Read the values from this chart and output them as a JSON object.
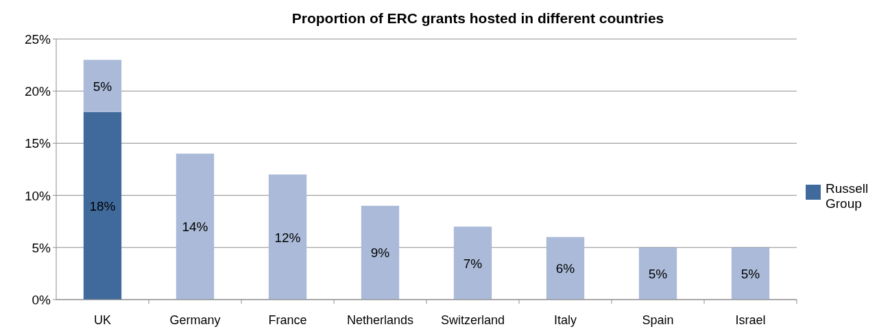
{
  "chart_data": {
    "type": "bar",
    "title": "Proportion of ERC grants hosted in different countries",
    "categories": [
      "UK",
      "Germany",
      "France",
      "Netherlands",
      "Switzerland",
      "Italy",
      "Spain",
      "Israel"
    ],
    "stacked": true,
    "series": [
      {
        "name": "Russell Group",
        "color": "#416a9c",
        "values": [
          18,
          null,
          null,
          null,
          null,
          null,
          null,
          null
        ],
        "value_labels": [
          "18%",
          null,
          null,
          null,
          null,
          null,
          null,
          null
        ]
      },
      {
        "color": "#aabad8",
        "values": [
          5,
          14,
          12,
          9,
          7,
          6,
          5,
          5
        ],
        "value_labels": [
          "5%",
          "14%",
          "12%",
          "9%",
          "7%",
          "6%",
          "5%",
          "5%"
        ]
      }
    ],
    "ylim": [
      0,
      25
    ],
    "yticks": [
      {
        "value": 0,
        "label": "0%"
      },
      {
        "value": 5,
        "label": "5%"
      },
      {
        "value": 10,
        "label": "10%"
      },
      {
        "value": 15,
        "label": "15%"
      },
      {
        "value": 20,
        "label": "20%"
      },
      {
        "value": 25,
        "label": "25%"
      }
    ],
    "grid": "y",
    "legend": "right"
  }
}
